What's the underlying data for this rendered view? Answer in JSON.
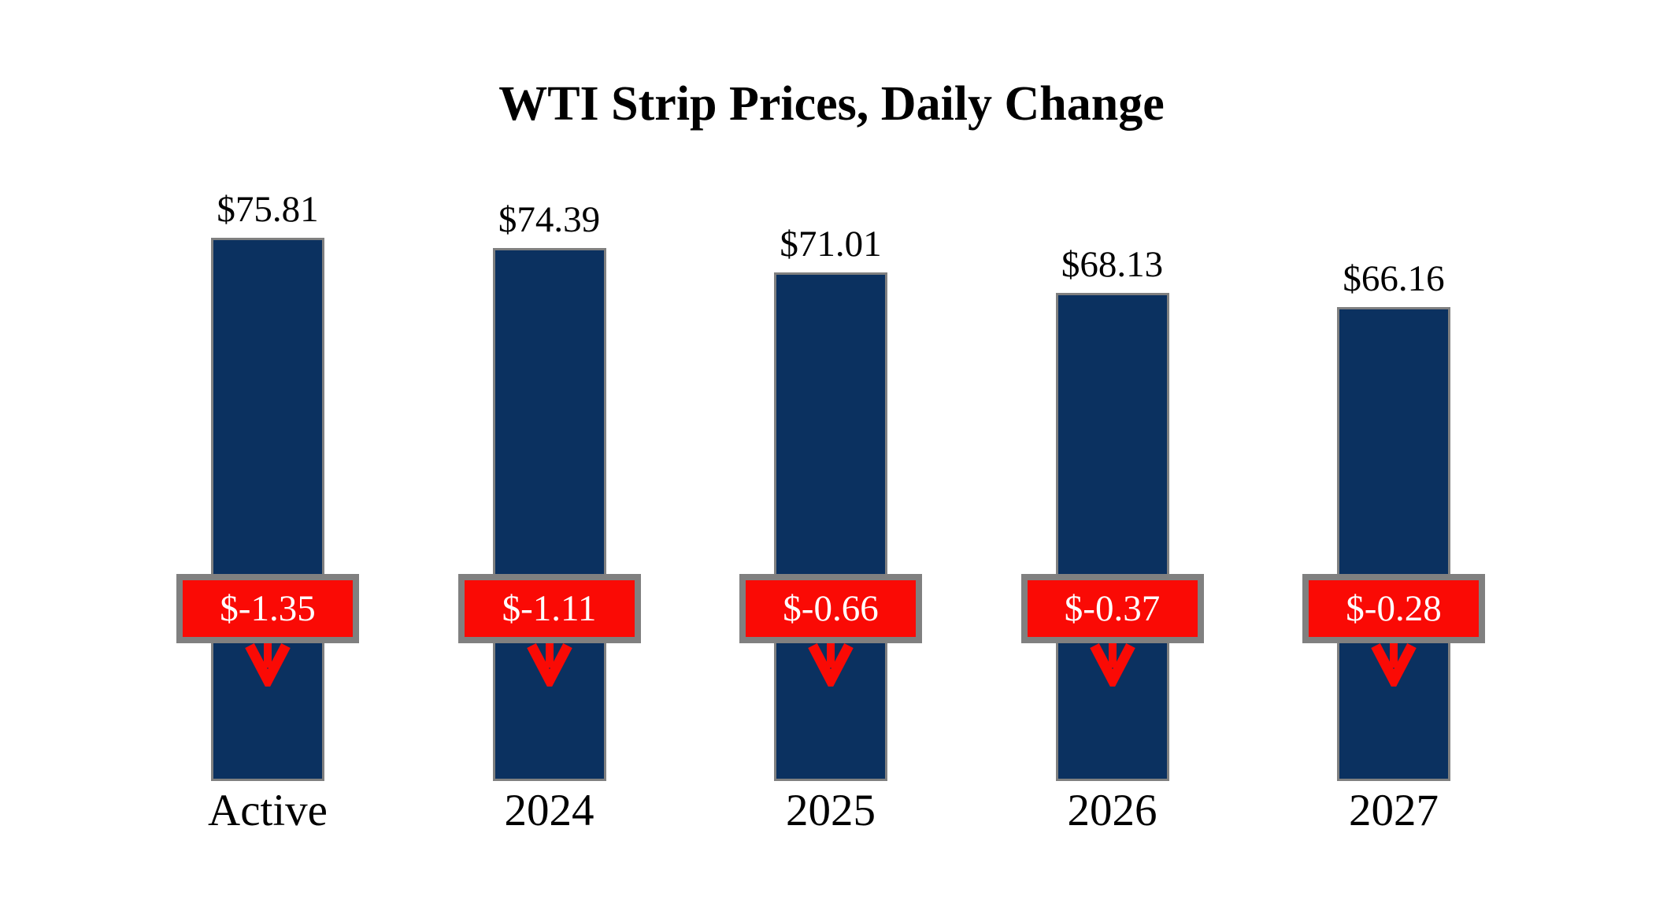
{
  "page": {
    "background": "#FFFFFF"
  },
  "chart_data": {
    "type": "bar",
    "title": "WTI Strip Prices, Daily Change",
    "categories": [
      "Active",
      "2024",
      "2025",
      "2026",
      "2027"
    ],
    "series": [
      {
        "name": "Strip Price",
        "values": [
          75.81,
          74.39,
          71.01,
          68.13,
          66.16
        ]
      },
      {
        "name": "Daily Change",
        "values": [
          -1.35,
          -1.11,
          -0.66,
          -0.37,
          -0.28
        ]
      }
    ],
    "price_labels": [
      "$75.81",
      "$74.39",
      "$71.01",
      "$68.13",
      "$66.16"
    ],
    "change_labels": [
      "$-1.35",
      "$-1.11",
      "$-0.66",
      "$-0.37",
      "$-0.28"
    ],
    "ylim": [
      0,
      80
    ],
    "grid": false,
    "legend": false,
    "axes_visible": false,
    "colors": {
      "bar_navy": "#0B3160",
      "change_red": "#FA0A05",
      "border_gray": "#808080",
      "badge_text": "#FFFFFF",
      "label_text": "#000000"
    }
  }
}
